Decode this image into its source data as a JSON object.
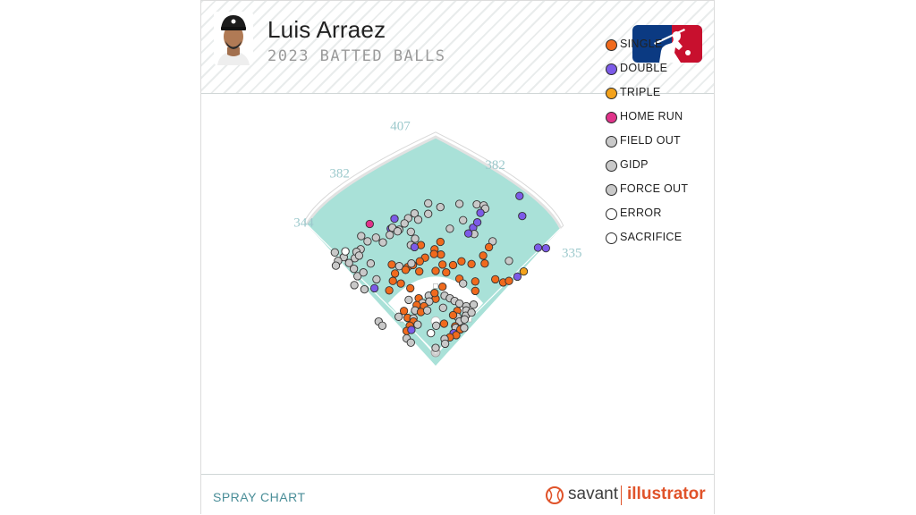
{
  "header": {
    "player_name": "Luis Arraez",
    "subtitle": "2023 BATTED BALLS"
  },
  "footer": {
    "label": "SPRAY CHART",
    "brand_savant": "savant",
    "brand_illustrator": "illustrator"
  },
  "colors": {
    "field": "#a9e1d8",
    "single": "#f06a1d",
    "double": "#7c5be8",
    "triple": "#f3a21b",
    "home_run": "#e0338a",
    "out": "#c9c9c9",
    "error": "#ffffff",
    "sacrifice": "#ffffff"
  },
  "chart_data": {
    "type": "scatter",
    "title": "Luis Arraez",
    "subtitle": "2023 BATTED BALLS",
    "footer_label": "SPRAY CHART",
    "fence_distances": [
      "344",
      "382",
      "407",
      "382",
      "335"
    ],
    "legend_position": "right",
    "legend": [
      {
        "key": "single",
        "label": "SINGLE",
        "color": "#f06a1d"
      },
      {
        "key": "double",
        "label": "DOUBLE",
        "color": "#7c5be8"
      },
      {
        "key": "triple",
        "label": "TRIPLE",
        "color": "#f3a21b"
      },
      {
        "key": "home_run",
        "label": "HOME RUN",
        "color": "#e0338a"
      },
      {
        "key": "field_out",
        "label": "FIELD OUT",
        "color": "#c9c9c9"
      },
      {
        "key": "gidp",
        "label": "GIDP",
        "color": "#c9c9c9"
      },
      {
        "key": "force_out",
        "label": "FORCE OUT",
        "color": "#c9c9c9"
      },
      {
        "key": "error",
        "label": "ERROR",
        "color": "#ffffff"
      },
      {
        "key": "sacrifice",
        "label": "SACRIFICE",
        "color": "#ffffff"
      }
    ],
    "units": "hit location relative to home plate (ft): x positive toward right field, y toward center field",
    "points": [
      {
        "x": -14,
        "y": 284,
        "type": "field_out"
      },
      {
        "x": 45,
        "y": 283,
        "type": "field_out"
      },
      {
        "x": 78,
        "y": 282,
        "type": "field_out"
      },
      {
        "x": 91,
        "y": 280,
        "type": "field_out"
      },
      {
        "x": 94,
        "y": 274,
        "type": "field_out"
      },
      {
        "x": 164,
        "y": 260,
        "type": "double"
      },
      {
        "x": 85,
        "y": 266,
        "type": "double"
      },
      {
        "x": 159,
        "y": 298,
        "type": "double"
      },
      {
        "x": -78,
        "y": 255,
        "type": "double"
      },
      {
        "x": 9,
        "y": 277,
        "type": "field_out"
      },
      {
        "x": -40,
        "y": 265,
        "type": "field_out"
      },
      {
        "x": -33,
        "y": 253,
        "type": "field_out"
      },
      {
        "x": -52,
        "y": 256,
        "type": "field_out"
      },
      {
        "x": -14,
        "y": 264,
        "type": "field_out"
      },
      {
        "x": -59,
        "y": 246,
        "type": "field_out"
      },
      {
        "x": 52,
        "y": 252,
        "type": "field_out"
      },
      {
        "x": -85,
        "y": 236,
        "type": "double"
      },
      {
        "x": -82,
        "y": 238,
        "type": "field_out"
      },
      {
        "x": -69,
        "y": 234,
        "type": "field_out"
      },
      {
        "x": 27,
        "y": 236,
        "type": "field_out"
      },
      {
        "x": 71,
        "y": 238,
        "type": "double"
      },
      {
        "x": 79,
        "y": 248,
        "type": "double"
      },
      {
        "x": 73,
        "y": 226,
        "type": "field_out"
      },
      {
        "x": -125,
        "y": 245,
        "type": "home_run"
      },
      {
        "x": -141,
        "y": 222,
        "type": "field_out"
      },
      {
        "x": -87,
        "y": 224,
        "type": "field_out"
      },
      {
        "x": -72,
        "y": 231,
        "type": "field_out"
      },
      {
        "x": -47,
        "y": 230,
        "type": "field_out"
      },
      {
        "x": 62,
        "y": 227,
        "type": "double"
      },
      {
        "x": 108,
        "y": 212,
        "type": "field_out"
      },
      {
        "x": -100,
        "y": 210,
        "type": "field_out"
      },
      {
        "x": -113,
        "y": 219,
        "type": "field_out"
      },
      {
        "x": -129,
        "y": 212,
        "type": "field_out"
      },
      {
        "x": -39,
        "y": 217,
        "type": "field_out"
      },
      {
        "x": -28,
        "y": 205,
        "type": "single"
      },
      {
        "x": 9,
        "y": 211,
        "type": "single"
      },
      {
        "x": -47,
        "y": 205,
        "type": "field_out"
      },
      {
        "x": -40,
        "y": 201,
        "type": "double"
      },
      {
        "x": 101,
        "y": 201,
        "type": "single"
      },
      {
        "x": -2,
        "y": 197,
        "type": "single"
      },
      {
        "x": 194,
        "y": 200,
        "type": "double"
      },
      {
        "x": 209,
        "y": 199,
        "type": "double"
      },
      {
        "x": -191,
        "y": 191,
        "type": "field_out"
      },
      {
        "x": -174,
        "y": 182,
        "type": "field_out"
      },
      {
        "x": -153,
        "y": 180,
        "type": "field_out"
      },
      {
        "x": -142,
        "y": 197,
        "type": "field_out"
      },
      {
        "x": -150,
        "y": 192,
        "type": "field_out"
      },
      {
        "x": -171,
        "y": 193,
        "type": "error"
      },
      {
        "x": -145,
        "y": 185,
        "type": "field_out"
      },
      {
        "x": 10,
        "y": 187,
        "type": "single"
      },
      {
        "x": -20,
        "y": 181,
        "type": "single"
      },
      {
        "x": -3,
        "y": 188,
        "type": "single"
      },
      {
        "x": 139,
        "y": 175,
        "type": "field_out"
      },
      {
        "x": 90,
        "y": 185,
        "type": "single"
      },
      {
        "x": 93,
        "y": 170,
        "type": "single"
      },
      {
        "x": -83,
        "y": 168,
        "type": "single"
      },
      {
        "x": -69,
        "y": 165,
        "type": "field_out"
      },
      {
        "x": -53,
        "y": 163,
        "type": "single"
      },
      {
        "x": -43,
        "y": 167,
        "type": "single"
      },
      {
        "x": -46,
        "y": 170,
        "type": "field_out"
      },
      {
        "x": -30,
        "y": 174,
        "type": "single"
      },
      {
        "x": 13,
        "y": 168,
        "type": "single"
      },
      {
        "x": 49,
        "y": 174,
        "type": "single"
      },
      {
        "x": 33,
        "y": 167,
        "type": "single"
      },
      {
        "x": 68,
        "y": 169,
        "type": "single"
      },
      {
        "x": -185,
        "y": 175,
        "type": "field_out"
      },
      {
        "x": -164,
        "y": 171,
        "type": "field_out"
      },
      {
        "x": -189,
        "y": 166,
        "type": "field_out"
      },
      {
        "x": -155,
        "y": 160,
        "type": "field_out"
      },
      {
        "x": -123,
        "y": 170,
        "type": "field_out"
      },
      {
        "x": -77,
        "y": 151,
        "type": "single"
      },
      {
        "x": -57,
        "y": 158,
        "type": "single"
      },
      {
        "x": -31,
        "y": 155,
        "type": "single"
      },
      {
        "x": 0,
        "y": 156,
        "type": "single"
      },
      {
        "x": 20,
        "y": 153,
        "type": "single"
      },
      {
        "x": 113,
        "y": 140,
        "type": "single"
      },
      {
        "x": 128,
        "y": 134,
        "type": "single"
      },
      {
        "x": 139,
        "y": 137,
        "type": "single"
      },
      {
        "x": 155,
        "y": 145,
        "type": "double"
      },
      {
        "x": 167,
        "y": 155,
        "type": "triple"
      },
      {
        "x": -148,
        "y": 146,
        "type": "field_out"
      },
      {
        "x": -137,
        "y": 153,
        "type": "field_out"
      },
      {
        "x": -112,
        "y": 140,
        "type": "field_out"
      },
      {
        "x": -81,
        "y": 137,
        "type": "single"
      },
      {
        "x": -66,
        "y": 132,
        "type": "single"
      },
      {
        "x": 45,
        "y": 141,
        "type": "single"
      },
      {
        "x": 52,
        "y": 132,
        "type": "field_out"
      },
      {
        "x": 75,
        "y": 136,
        "type": "single"
      },
      {
        "x": -154,
        "y": 129,
        "type": "field_out"
      },
      {
        "x": -135,
        "y": 121,
        "type": "field_out"
      },
      {
        "x": -116,
        "y": 123,
        "type": "double"
      },
      {
        "x": -88,
        "y": 119,
        "type": "single"
      },
      {
        "x": -48,
        "y": 123,
        "type": "single"
      },
      {
        "x": 13,
        "y": 126,
        "type": "single"
      },
      {
        "x": 75,
        "y": 118,
        "type": "single"
      },
      {
        "x": -51,
        "y": 101,
        "type": "field_out"
      },
      {
        "x": -32,
        "y": 104,
        "type": "single"
      },
      {
        "x": -13,
        "y": 109,
        "type": "field_out"
      },
      {
        "x": 0,
        "y": 103,
        "type": "single"
      },
      {
        "x": 17,
        "y": 109,
        "type": "field_out"
      },
      {
        "x": -2,
        "y": 114,
        "type": "single"
      },
      {
        "x": 27,
        "y": 104,
        "type": "field_out"
      },
      {
        "x": 36,
        "y": 99,
        "type": "field_out"
      },
      {
        "x": 45,
        "y": 94,
        "type": "field_out"
      },
      {
        "x": 58,
        "y": 89,
        "type": "field_out"
      },
      {
        "x": 72,
        "y": 92,
        "type": "field_out"
      },
      {
        "x": -25,
        "y": 95,
        "type": "field_out"
      },
      {
        "x": -12,
        "y": 98,
        "type": "field_out"
      },
      {
        "x": -36,
        "y": 91,
        "type": "single"
      },
      {
        "x": -22,
        "y": 89,
        "type": "single"
      },
      {
        "x": -60,
        "y": 80,
        "type": "single"
      },
      {
        "x": -70,
        "y": 69,
        "type": "field_out"
      },
      {
        "x": -39,
        "y": 81,
        "type": "field_out"
      },
      {
        "x": -28,
        "y": 78,
        "type": "single"
      },
      {
        "x": -16,
        "y": 81,
        "type": "field_out"
      },
      {
        "x": 14,
        "y": 86,
        "type": "field_out"
      },
      {
        "x": 41,
        "y": 80,
        "type": "single"
      },
      {
        "x": 41,
        "y": 69,
        "type": "field_out"
      },
      {
        "x": 58,
        "y": 81,
        "type": "field_out"
      },
      {
        "x": 57,
        "y": 71,
        "type": "field_out"
      },
      {
        "x": 68,
        "y": 77,
        "type": "field_out"
      },
      {
        "x": -53,
        "y": 67,
        "type": "single"
      },
      {
        "x": -42,
        "y": 66,
        "type": "field_out"
      },
      {
        "x": 33,
        "y": 72,
        "type": "single"
      },
      {
        "x": -108,
        "y": 60,
        "type": "field_out"
      },
      {
        "x": -101,
        "y": 52,
        "type": "field_out"
      },
      {
        "x": -42,
        "y": 60,
        "type": "single"
      },
      {
        "x": -49,
        "y": 52,
        "type": "single"
      },
      {
        "x": -34,
        "y": 54,
        "type": "field_out"
      },
      {
        "x": 1,
        "y": 52,
        "type": "field_out"
      },
      {
        "x": 16,
        "y": 56,
        "type": "single"
      },
      {
        "x": 45,
        "y": 60,
        "type": "field_out"
      },
      {
        "x": 55,
        "y": 64,
        "type": "field_out"
      },
      {
        "x": 37,
        "y": 51,
        "type": "single"
      },
      {
        "x": 38,
        "y": 48,
        "type": "field_out"
      },
      {
        "x": 47,
        "y": 45,
        "type": "single"
      },
      {
        "x": 54,
        "y": 48,
        "type": "field_out"
      },
      {
        "x": -55,
        "y": 42,
        "type": "single"
      },
      {
        "x": -46,
        "y": 44,
        "type": "double"
      },
      {
        "x": 34,
        "y": 38,
        "type": "double"
      },
      {
        "x": 39,
        "y": 34,
        "type": "single"
      },
      {
        "x": 27,
        "y": 30,
        "type": "single"
      },
      {
        "x": -9,
        "y": 38,
        "type": "error"
      },
      {
        "x": -55,
        "y": 28,
        "type": "field_out"
      },
      {
        "x": -47,
        "y": 20,
        "type": "field_out"
      },
      {
        "x": 17,
        "y": 27,
        "type": "field_out"
      },
      {
        "x": 18,
        "y": 18,
        "type": "field_out"
      },
      {
        "x": 0,
        "y": 10,
        "type": "field_out"
      }
    ]
  }
}
